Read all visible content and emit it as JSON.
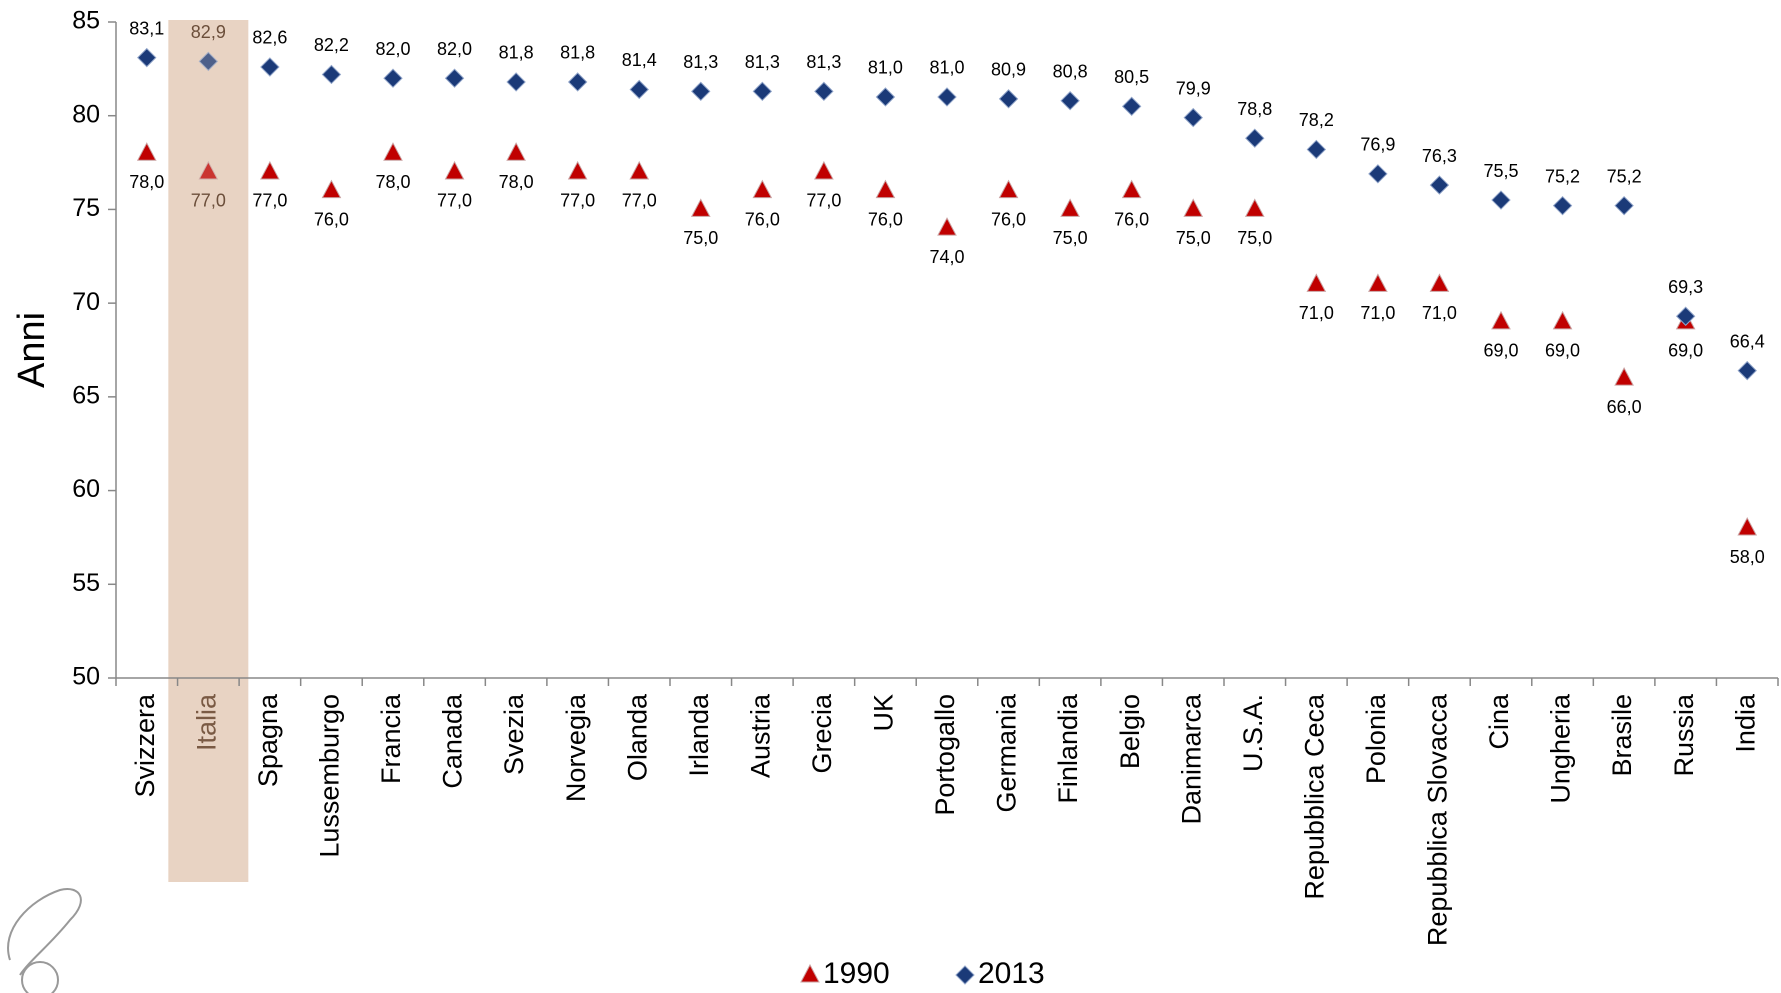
{
  "chart_data": {
    "type": "scatter",
    "y_label": "Anni",
    "categories": [
      "Svizzera",
      "Italia",
      "Spagna",
      "Lussemburgo",
      "Francia",
      "Canada",
      "Svezia",
      "Norvegia",
      "Olanda",
      "Irlanda",
      "Austria",
      "Grecia",
      "UK",
      "Portogallo",
      "Germania",
      "Finlandia",
      "Belgio",
      "Danimarca",
      "U.S.A.",
      "Repubblica Ceca",
      "Polonia",
      "Repubblica Slovacca",
      "Cina",
      "Ungheria",
      "Brasile",
      "Russia",
      "India"
    ],
    "series": [
      {
        "name": "1990",
        "color": "#c00000",
        "marker": "triangle",
        "values": [
          78,
          77,
          77,
          76,
          78,
          77,
          78,
          77,
          77,
          75,
          76,
          77,
          76,
          74,
          76,
          75,
          76,
          75,
          75,
          71,
          71,
          71,
          69,
          69,
          66,
          69,
          58
        ],
        "value_labels": [
          "78,0",
          "77,0",
          "77,0",
          "76,0",
          "78,0",
          "77,0",
          "78,0",
          "77,0",
          "77,0",
          "75,0",
          "76,0",
          "77,0",
          "76,0",
          "74,0",
          "76,0",
          "75,0",
          "76,0",
          "75,0",
          "75,0",
          "71,0",
          "71,0",
          "71,0",
          "69,0",
          "69,0",
          "66,0",
          "69,0",
          "58,0"
        ]
      },
      {
        "name": "2013",
        "color": "#1b3a78",
        "marker": "diamond",
        "values": [
          83.1,
          82.9,
          82.6,
          82.2,
          82.0,
          82.0,
          81.8,
          81.8,
          81.4,
          81.3,
          81.3,
          81.3,
          81.0,
          81.0,
          80.9,
          80.8,
          80.5,
          79.9,
          78.8,
          78.2,
          76.9,
          76.3,
          75.5,
          75.2,
          75.2,
          69.3,
          66.4
        ],
        "value_labels": [
          "83,1",
          "82,9",
          "82,6",
          "82,2",
          "82,0",
          "82,0",
          "81,8",
          "81,8",
          "81,4",
          "81,3",
          "81,3",
          "81,3",
          "81,0",
          "81,0",
          "80,9",
          "80,8",
          "80,5",
          "79,9",
          "78,8",
          "78,2",
          "76,9",
          "76,3",
          "75,5",
          "75,2",
          "75,2",
          "69,3",
          "66,4"
        ]
      }
    ],
    "highlight_index": 1,
    "highlight_color": "#e8d3c3",
    "ylim": [
      50,
      85
    ],
    "yticks": [
      50,
      55,
      60,
      65,
      70,
      75,
      80,
      85
    ],
    "grid": false
  }
}
